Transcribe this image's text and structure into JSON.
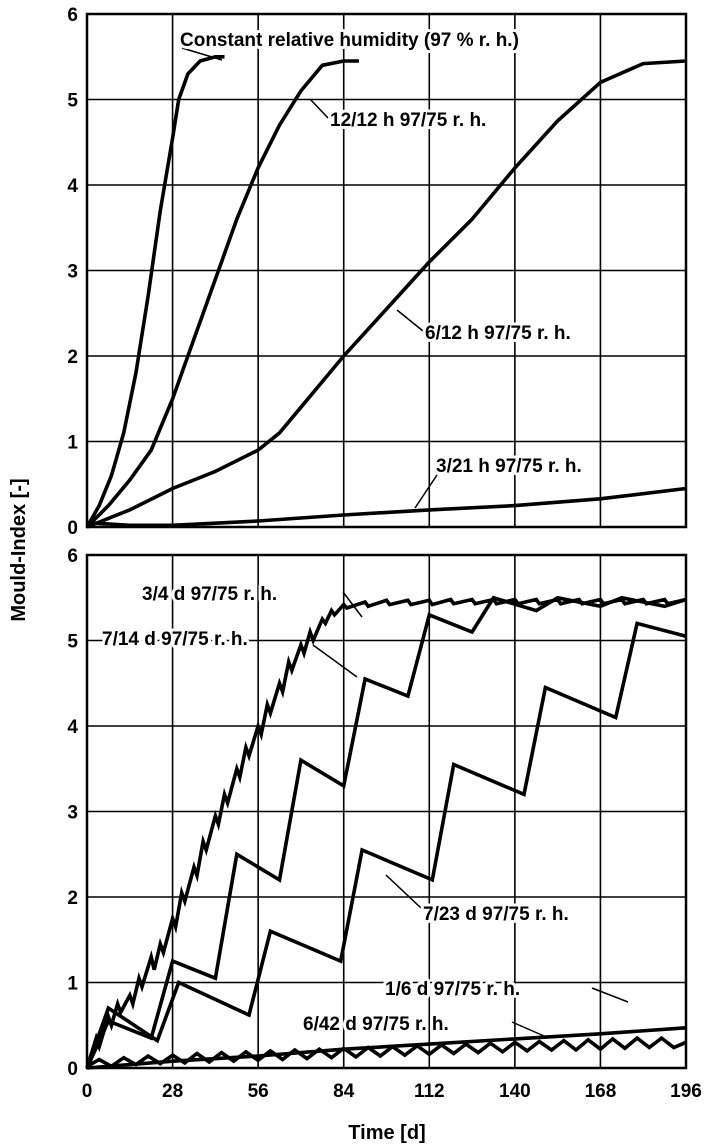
{
  "ylabel": "Mould-Index [-]",
  "xlabel": "Time [d]",
  "chart_data": [
    {
      "type": "line",
      "panel": "top",
      "xlim": [
        0,
        196
      ],
      "ylim": [
        0,
        6
      ],
      "x_ticks": [
        0,
        28,
        56,
        84,
        112,
        140,
        168,
        196
      ],
      "y_ticks": [
        0,
        1,
        2,
        3,
        4,
        5,
        6
      ],
      "grid": true,
      "series": [
        {
          "name": "Constant relative humidity (97 % r. h.)",
          "points": [
            [
              0,
              0
            ],
            [
              4,
              0.25
            ],
            [
              8,
              0.6
            ],
            [
              12,
              1.1
            ],
            [
              16,
              1.8
            ],
            [
              20,
              2.7
            ],
            [
              24,
              3.7
            ],
            [
              28,
              4.55
            ],
            [
              30,
              5.0
            ],
            [
              33,
              5.3
            ],
            [
              37,
              5.45
            ],
            [
              42,
              5.5
            ],
            [
              45,
              5.5
            ]
          ]
        },
        {
          "name": "12/12 h  97/75 r. h.",
          "points": [
            [
              0,
              0
            ],
            [
              7,
              0.25
            ],
            [
              14,
              0.55
            ],
            [
              21,
              0.9
            ],
            [
              28,
              1.5
            ],
            [
              35,
              2.2
            ],
            [
              42,
              2.9
            ],
            [
              49,
              3.6
            ],
            [
              56,
              4.2
            ],
            [
              63,
              4.7
            ],
            [
              70,
              5.1
            ],
            [
              77,
              5.4
            ],
            [
              84,
              5.45
            ],
            [
              89,
              5.45
            ]
          ]
        },
        {
          "name": "6/12 h  97/75 r. h.",
          "points": [
            [
              0,
              0
            ],
            [
              14,
              0.2
            ],
            [
              28,
              0.45
            ],
            [
              42,
              0.65
            ],
            [
              56,
              0.9
            ],
            [
              63,
              1.1
            ],
            [
              70,
              1.4
            ],
            [
              84,
              2.0
            ],
            [
              98,
              2.55
            ],
            [
              112,
              3.1
            ],
            [
              126,
              3.6
            ],
            [
              140,
              4.2
            ],
            [
              154,
              4.75
            ],
            [
              168,
              5.2
            ],
            [
              182,
              5.42
            ],
            [
              196,
              5.45
            ]
          ]
        },
        {
          "name": "3/21 h  97/75 r. h.",
          "points": [
            [
              0,
              0.05
            ],
            [
              14,
              0.02
            ],
            [
              28,
              0.02
            ],
            [
              56,
              0.07
            ],
            [
              84,
              0.14
            ],
            [
              112,
              0.2
            ],
            [
              140,
              0.25
            ],
            [
              168,
              0.33
            ],
            [
              196,
              0.45
            ]
          ]
        }
      ],
      "annotations": [
        {
          "text": "Constant relative humidity (97 % r. h.)",
          "target": [
            45,
            5.5
          ]
        },
        {
          "text": "12/12 h  97/75 r. h.",
          "target": [
            68,
            4.95
          ]
        },
        {
          "text": "6/12 h  97/75 r. h.",
          "target": [
            120,
            2.45
          ]
        },
        {
          "text": "3/21 h  97/75 r. h.",
          "target": [
            100,
            0.17
          ]
        }
      ]
    },
    {
      "type": "line",
      "panel": "bottom",
      "xlim": [
        0,
        196
      ],
      "ylim": [
        0,
        6
      ],
      "x_ticks": [
        0,
        28,
        56,
        84,
        112,
        140,
        168,
        196
      ],
      "y_ticks": [
        0,
        1,
        2,
        3,
        4,
        5,
        6
      ],
      "grid": true,
      "series": [
        {
          "name": "3/4 d  97/75 r. h.",
          "points": [
            [
              0,
              0
            ],
            [
              3,
              0.35
            ],
            [
              4,
              0.25
            ],
            [
              7,
              0.6
            ],
            [
              8,
              0.5
            ],
            [
              10,
              0.75
            ],
            [
              11,
              0.65
            ],
            [
              14,
              0.85
            ],
            [
              15,
              0.75
            ],
            [
              17,
              1.05
            ],
            [
              18,
              0.95
            ],
            [
              21,
              1.3
            ],
            [
              22,
              1.15
            ],
            [
              24,
              1.45
            ],
            [
              25,
              1.35
            ],
            [
              28,
              1.75
            ],
            [
              29,
              1.65
            ],
            [
              31,
              2.05
            ],
            [
              32,
              1.95
            ],
            [
              35,
              2.35
            ],
            [
              36,
              2.25
            ],
            [
              38,
              2.65
            ],
            [
              39,
              2.55
            ],
            [
              42,
              2.95
            ],
            [
              43,
              2.85
            ],
            [
              45,
              3.2
            ],
            [
              46,
              3.1
            ],
            [
              49,
              3.5
            ],
            [
              50,
              3.4
            ],
            [
              52,
              3.75
            ],
            [
              53,
              3.65
            ],
            [
              56,
              4.0
            ],
            [
              57,
              3.9
            ],
            [
              59,
              4.25
            ],
            [
              60,
              4.15
            ],
            [
              63,
              4.5
            ],
            [
              64,
              4.4
            ],
            [
              66,
              4.75
            ],
            [
              67,
              4.65
            ],
            [
              70,
              4.95
            ],
            [
              71,
              4.85
            ],
            [
              73,
              5.1
            ],
            [
              74,
              5.0
            ],
            [
              77,
              5.25
            ],
            [
              78,
              5.2
            ],
            [
              80,
              5.35
            ],
            [
              81,
              5.3
            ],
            [
              84,
              5.42
            ],
            [
              85,
              5.38
            ],
            [
              91,
              5.45
            ],
            [
              92,
              5.4
            ],
            [
              98,
              5.47
            ],
            [
              99,
              5.42
            ],
            [
              105,
              5.47
            ],
            [
              106,
              5.42
            ],
            [
              112,
              5.47
            ],
            [
              113,
              5.42
            ],
            [
              119,
              5.48
            ],
            [
              120,
              5.43
            ],
            [
              126,
              5.48
            ],
            [
              127,
              5.43
            ],
            [
              133,
              5.48
            ],
            [
              134,
              5.43
            ],
            [
              140,
              5.48
            ],
            [
              141,
              5.43
            ],
            [
              147,
              5.48
            ],
            [
              148,
              5.43
            ],
            [
              154,
              5.48
            ],
            [
              155,
              5.43
            ],
            [
              161,
              5.48
            ],
            [
              162,
              5.43
            ],
            [
              168,
              5.48
            ],
            [
              169,
              5.43
            ],
            [
              175,
              5.48
            ],
            [
              176,
              5.43
            ],
            [
              182,
              5.48
            ],
            [
              183,
              5.43
            ],
            [
              189,
              5.48
            ],
            [
              190,
              5.43
            ],
            [
              196,
              5.48
            ]
          ]
        },
        {
          "name": "7/14 d  97/75 r. h.",
          "points": [
            [
              0,
              0
            ],
            [
              7,
              0.55
            ],
            [
              21,
              0.35
            ],
            [
              28,
              1.25
            ],
            [
              42,
              1.05
            ],
            [
              49,
              2.5
            ],
            [
              63,
              2.2
            ],
            [
              70,
              3.6
            ],
            [
              84,
              3.3
            ],
            [
              91,
              4.55
            ],
            [
              105,
              4.35
            ],
            [
              112,
              5.3
            ],
            [
              126,
              5.1
            ],
            [
              133,
              5.5
            ],
            [
              147,
              5.35
            ],
            [
              154,
              5.5
            ],
            [
              168,
              5.4
            ],
            [
              175,
              5.5
            ],
            [
              189,
              5.4
            ],
            [
              196,
              5.48
            ]
          ]
        },
        {
          "name": "7/23 d  97/75 r. h.",
          "points": [
            [
              0,
              0
            ],
            [
              7,
              0.7
            ],
            [
              23,
              0.32
            ],
            [
              30,
              1.0
            ],
            [
              53,
              0.62
            ],
            [
              60,
              1.6
            ],
            [
              83,
              1.25
            ],
            [
              90,
              2.55
            ],
            [
              113,
              2.2
            ],
            [
              120,
              3.55
            ],
            [
              143,
              3.2
            ],
            [
              150,
              4.45
            ],
            [
              173,
              4.1
            ],
            [
              180,
              5.2
            ],
            [
              196,
              5.05
            ]
          ]
        },
        {
          "name": "1/6 d  97/75 r. h.",
          "points": [
            [
              0,
              0
            ],
            [
              28,
              0.08
            ],
            [
              56,
              0.14
            ],
            [
              84,
              0.22
            ],
            [
              112,
              0.28
            ],
            [
              140,
              0.34
            ],
            [
              168,
              0.4
            ],
            [
              196,
              0.47
            ]
          ]
        },
        {
          "name": "6/42 d  97/75 r. h.",
          "points": [
            [
              0,
              0.02
            ],
            [
              4,
              0.1
            ],
            [
              8,
              0.02
            ],
            [
              12,
              0.12
            ],
            [
              16,
              0.04
            ],
            [
              20,
              0.14
            ],
            [
              24,
              0.05
            ],
            [
              28,
              0.15
            ],
            [
              32,
              0.06
            ],
            [
              36,
              0.17
            ],
            [
              40,
              0.07
            ],
            [
              44,
              0.18
            ],
            [
              48,
              0.08
            ],
            [
              52,
              0.19
            ],
            [
              56,
              0.09
            ],
            [
              60,
              0.2
            ],
            [
              64,
              0.1
            ],
            [
              68,
              0.21
            ],
            [
              72,
              0.11
            ],
            [
              76,
              0.22
            ],
            [
              80,
              0.12
            ],
            [
              84,
              0.23
            ],
            [
              88,
              0.13
            ],
            [
              92,
              0.24
            ],
            [
              96,
              0.14
            ],
            [
              100,
              0.25
            ],
            [
              104,
              0.15
            ],
            [
              108,
              0.26
            ],
            [
              112,
              0.16
            ],
            [
              116,
              0.27
            ],
            [
              120,
              0.17
            ],
            [
              124,
              0.28
            ],
            [
              128,
              0.18
            ],
            [
              132,
              0.29
            ],
            [
              136,
              0.19
            ],
            [
              140,
              0.3
            ],
            [
              144,
              0.2
            ],
            [
              148,
              0.31
            ],
            [
              152,
              0.21
            ],
            [
              156,
              0.32
            ],
            [
              160,
              0.21
            ],
            [
              164,
              0.33
            ],
            [
              168,
              0.22
            ],
            [
              172,
              0.34
            ],
            [
              176,
              0.23
            ],
            [
              180,
              0.35
            ],
            [
              184,
              0.24
            ],
            [
              188,
              0.35
            ],
            [
              192,
              0.24
            ],
            [
              196,
              0.3
            ]
          ]
        }
      ],
      "annotations": [
        {
          "text": "3/4 d  97/75 r. h.",
          "target": [
            82,
            5.3
          ]
        },
        {
          "text": "7/14 d  97/75 r. h.",
          "target": [
            92,
            4.45
          ]
        },
        {
          "text": "7/23 d  97/75 r. h.",
          "target": [
            98,
            2.45
          ]
        },
        {
          "text": "1/6 d  97/75 r. h.",
          "target": [
            180,
            0.42
          ]
        },
        {
          "text": "6/42 d  97/75 r. h.",
          "target": [
            150,
            0.3
          ]
        }
      ]
    }
  ]
}
